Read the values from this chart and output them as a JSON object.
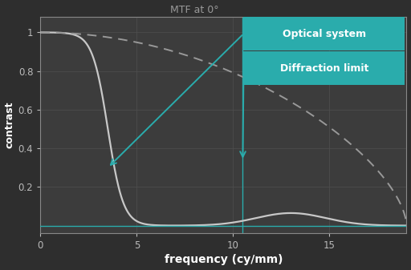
{
  "background_color": "#2e2e2e",
  "plot_bg_color": "#3c3c3c",
  "grid_color": "#505050",
  "axis_color": "#888888",
  "tick_label_color": "#bbbbbb",
  "title": "MTF at 0°",
  "title_color": "#999999",
  "xlabel": "frequency (cy/mm)",
  "ylabel": "contrast",
  "xlabel_color": "#ffffff",
  "ylabel_color": "#ffffff",
  "xlim": [
    0,
    19
  ],
  "ylim": [
    -0.04,
    1.08
  ],
  "xticks": [
    0,
    5,
    10,
    15
  ],
  "yticks": [
    0.2,
    0.4,
    0.6,
    0.8,
    1.0
  ],
  "vline_x": 10.5,
  "vline_color": "#2aacac",
  "legend_box_color": "#2aacac",
  "legend_text_color": "#ffffff",
  "legend_labels": [
    "Optical system",
    "Diffraction limit"
  ],
  "optical_system_color": "#c8c8c8",
  "diffraction_limit_color": "#999999",
  "arrow_color": "#2aacac",
  "zero_line_color": "#2aacac",
  "ytick_1": 1
}
